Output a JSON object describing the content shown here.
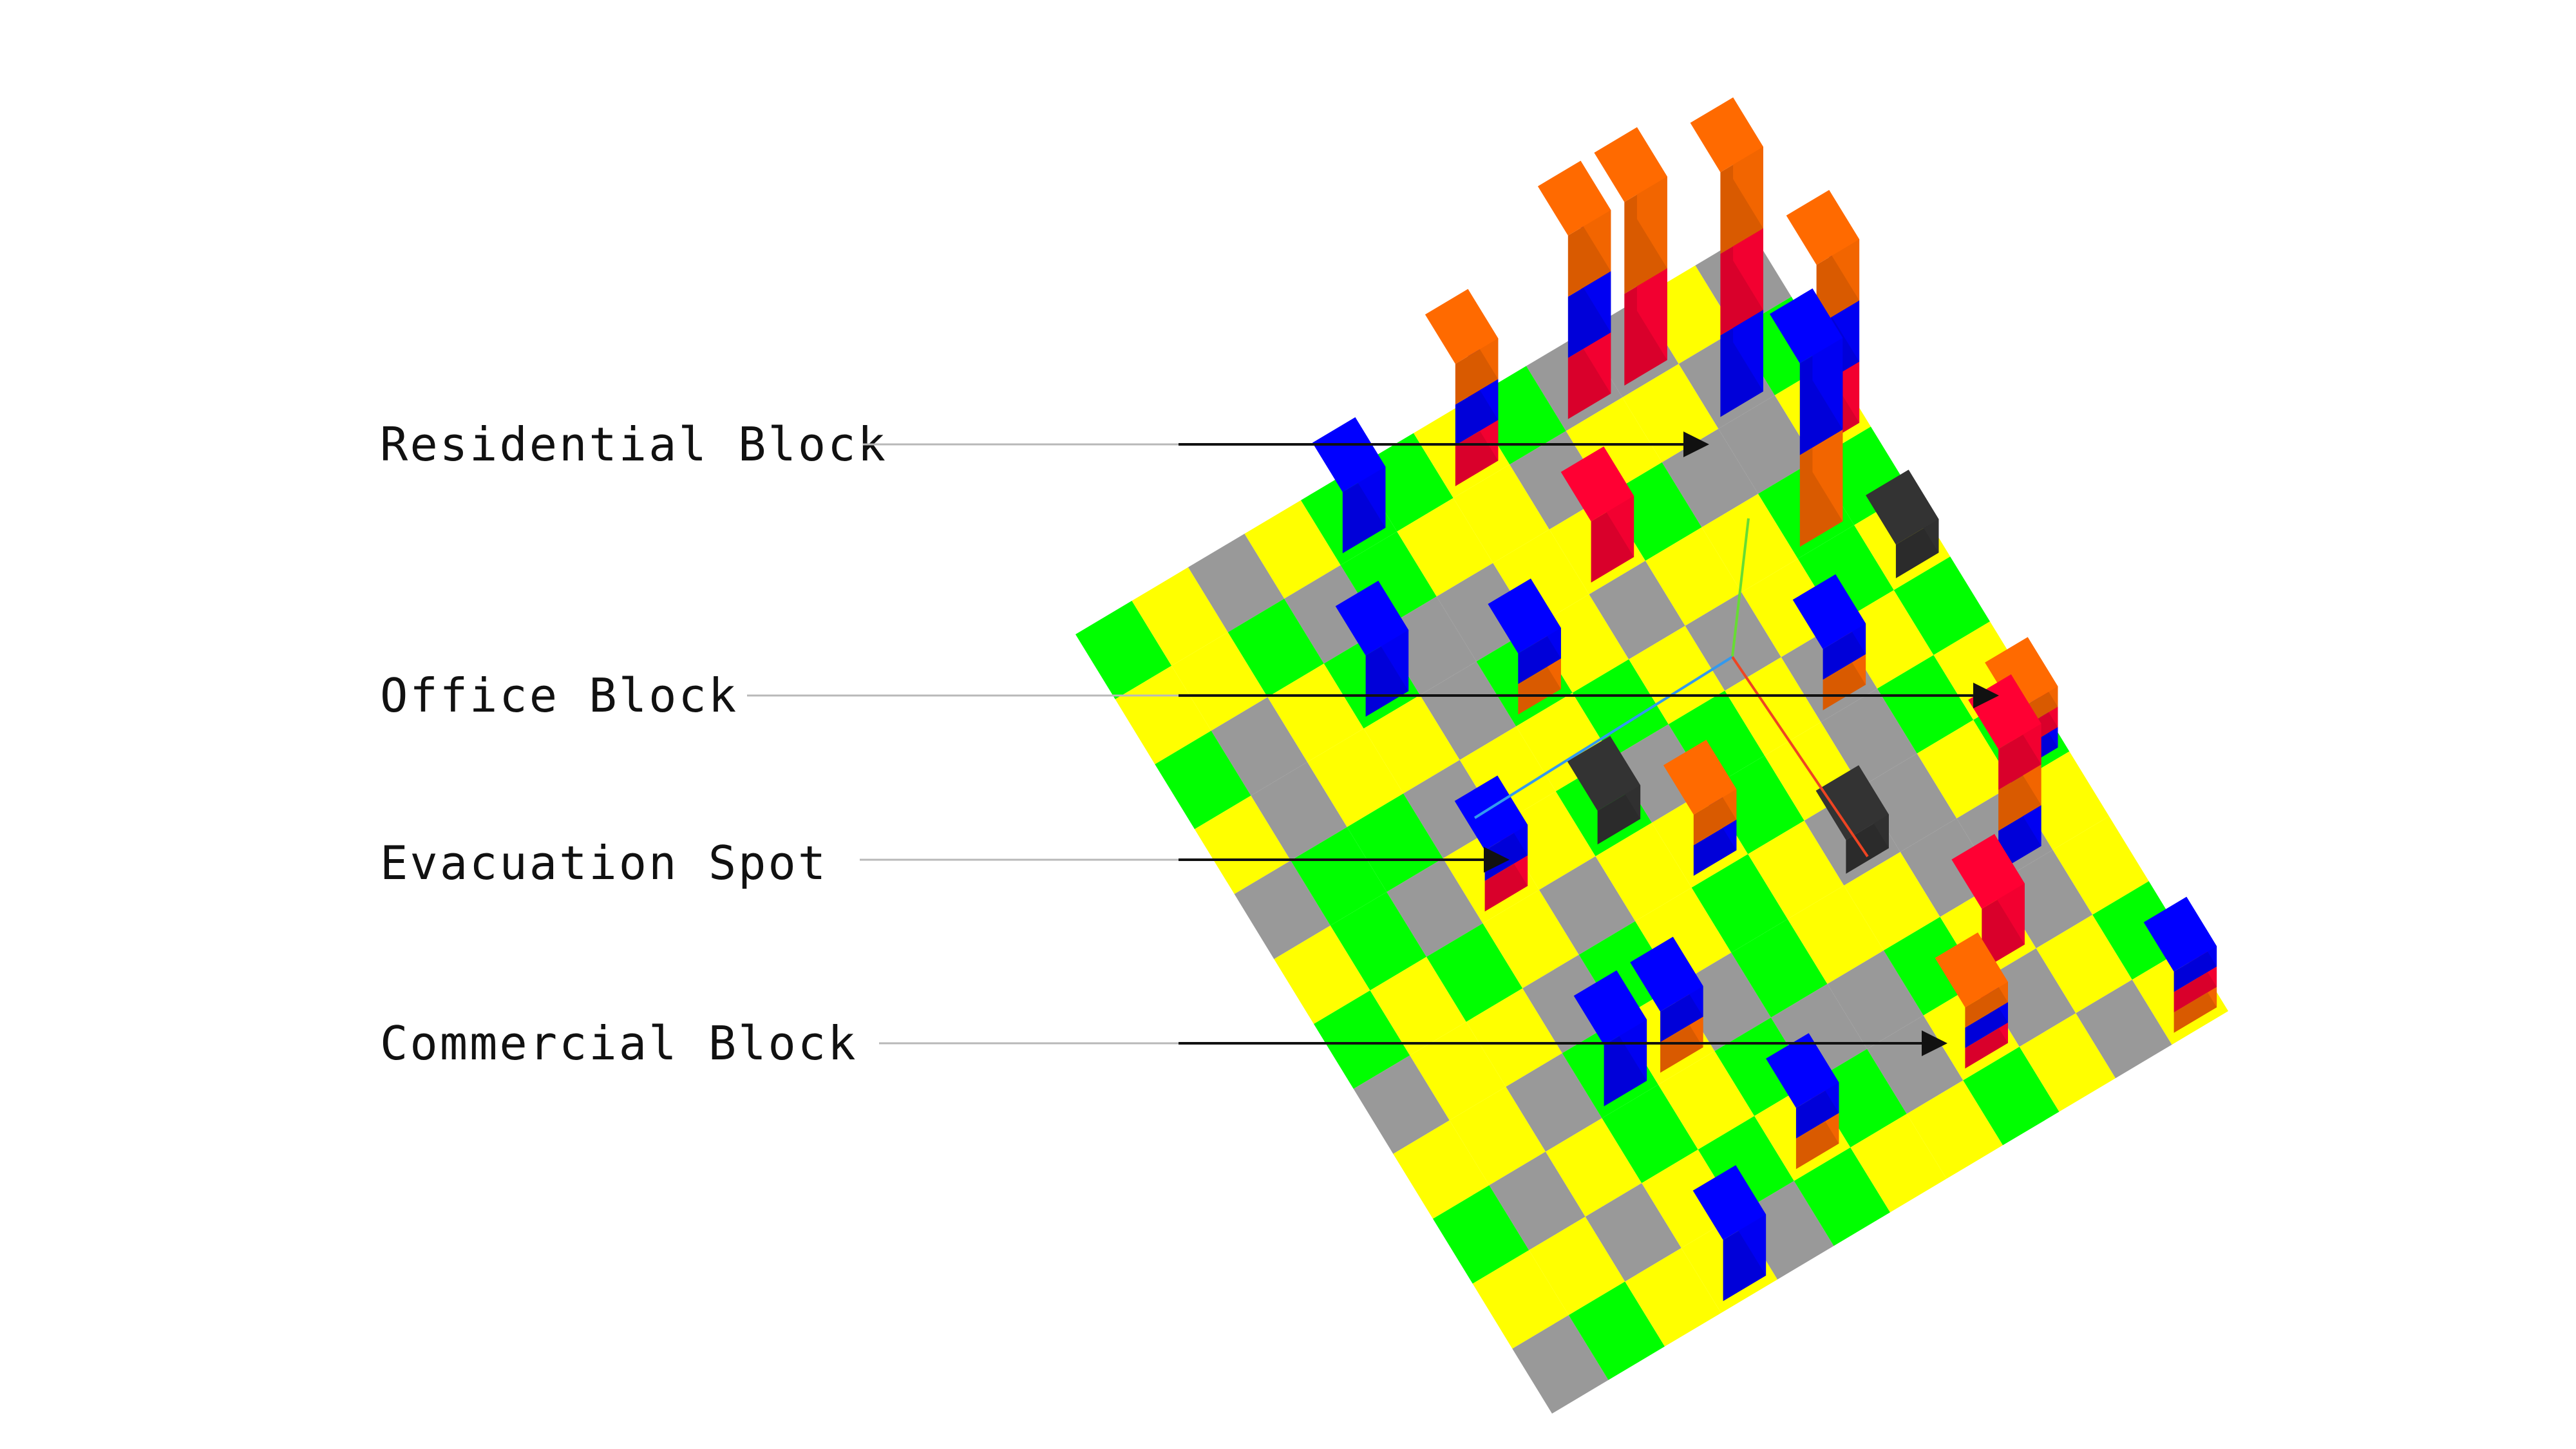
{
  "legend_labels": {
    "residential": "Residential Block",
    "office": "Office Block",
    "evacuation": "Evacuation Spot",
    "commercial": "Commercial Block"
  },
  "colors": {
    "background": "#ffffff",
    "road_gray": "#999999",
    "open_yellow": "#ffff00",
    "park_green": "#00ff00",
    "office_blue": "#0000ff",
    "residential_orange": "#ff6a00",
    "commercial_red": "#ff0033",
    "evacuation_dark": "#333333",
    "axis_green": "#66dd33",
    "axis_blue": "#3399ee",
    "axis_red": "#ee4422"
  },
  "scene": {
    "description_free": true,
    "grid_size": 12,
    "tiles": [
      "GYRYGGYGRRYR",
      "YYGRGYYRYYRG",
      "GRYGRRYYGRRY",
      "YRYYRGYRYYGG",
      "RGGRYYGYRYGY",
      "YGRYYGRGYRYG",
      "GYGYRYYGYRGY",
      "RYYRGYGYRRYG",
      "YYRGYRGYYRRY",
      "GRYGYGRRGYRY",
      "YYRYGYGRYRYG",
      "RGYYRGYYGYRY"
    ],
    "buildings": [
      {
        "col": 9,
        "row": 0,
        "height": 3,
        "stack": [
          "red",
          "orange"
        ]
      },
      {
        "col": 10,
        "row": 1,
        "height": 4,
        "stack": [
          "blue",
          "red",
          "orange"
        ]
      },
      {
        "col": 10,
        "row": 3,
        "height": 3,
        "stack": [
          "orange",
          "blue"
        ]
      },
      {
        "col": 11,
        "row": 2,
        "height": 3,
        "stack": [
          "red",
          "blue",
          "orange"
        ]
      },
      {
        "col": 8,
        "row": 0,
        "height": 3,
        "stack": [
          "red",
          "blue",
          "orange"
        ]
      },
      {
        "col": 6,
        "row": 0,
        "height": 2,
        "stack": [
          "red",
          "blue",
          "orange"
        ]
      },
      {
        "col": 4,
        "row": 0,
        "height": 1,
        "stack": [
          "blue"
        ]
      },
      {
        "col": 7,
        "row": 2,
        "height": 1,
        "stack": [
          "red"
        ]
      },
      {
        "col": 5,
        "row": 3,
        "height": 1,
        "stack": [
          "orange",
          "blue"
        ]
      },
      {
        "col": 9,
        "row": 5,
        "height": 1,
        "stack": [
          "orange",
          "blue"
        ]
      },
      {
        "col": 11,
        "row": 7,
        "height": 1,
        "stack": [
          "blue",
          "red",
          "orange"
        ]
      },
      {
        "col": 10,
        "row": 8,
        "height": 2,
        "stack": [
          "blue",
          "orange",
          "red"
        ]
      },
      {
        "col": 3,
        "row": 2,
        "height": 1,
        "stack": [
          "blue"
        ]
      },
      {
        "col": 3,
        "row": 5,
        "height": 1,
        "stack": [
          "red",
          "blue"
        ]
      },
      {
        "col": 6,
        "row": 6,
        "height": 1,
        "stack": [
          "blue",
          "orange"
        ]
      },
      {
        "col": 9,
        "row": 9,
        "height": 1,
        "stack": [
          "red"
        ]
      },
      {
        "col": 4,
        "row": 8,
        "height": 1,
        "stack": [
          "orange",
          "blue"
        ]
      },
      {
        "col": 8,
        "row": 10,
        "height": 1,
        "stack": [
          "red",
          "blue",
          "orange"
        ]
      },
      {
        "col": 3,
        "row": 8,
        "height": 1,
        "stack": [
          "blue"
        ]
      },
      {
        "col": 5,
        "row": 10,
        "height": 1,
        "stack": [
          "orange",
          "blue"
        ]
      },
      {
        "col": 3,
        "row": 11,
        "height": 1,
        "stack": [
          "blue"
        ]
      },
      {
        "col": 11,
        "row": 11,
        "height": 1,
        "stack": [
          "orange",
          "red",
          "blue"
        ]
      }
    ],
    "evacuation_spots": [
      {
        "col": 11,
        "row": 4
      },
      {
        "col": 5,
        "row": 5
      },
      {
        "col": 8,
        "row": 7
      }
    ]
  }
}
